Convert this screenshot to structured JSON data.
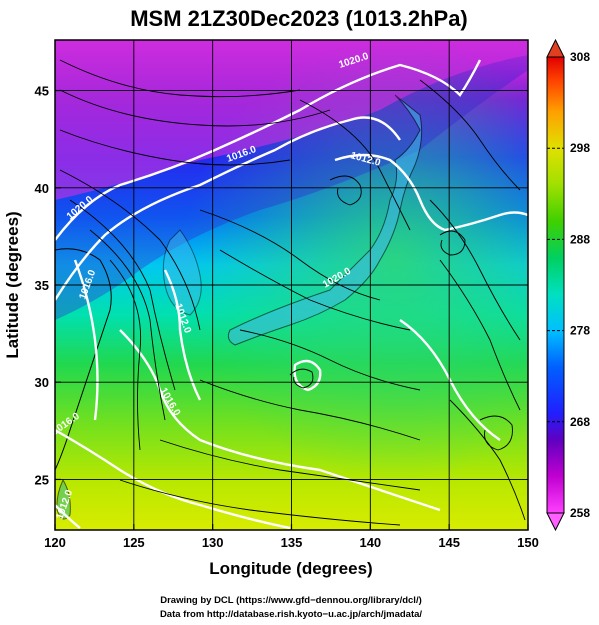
{
  "chart_data": {
    "type": "heatmap",
    "title": "MSM 21Z30Dec2023 (1013.2hPa)",
    "xlabel": "Longitude (degrees)",
    "ylabel": "Latitude  (degrees)",
    "xlim": [
      120,
      150
    ],
    "ylim": [
      22.4,
      47.6
    ],
    "x_ticks": [
      120,
      125,
      130,
      135,
      140,
      145,
      150
    ],
    "y_ticks": [
      25,
      30,
      35,
      40,
      45
    ],
    "colorbar": {
      "min": 258,
      "max": 308,
      "ticks": [
        258,
        268,
        278,
        288,
        298,
        308
      ],
      "colors": [
        "#ff40ff",
        "#8000c0",
        "#2020ff",
        "#0060ff",
        "#00c0ff",
        "#00e0c0",
        "#00d060",
        "#40d000",
        "#a0e000",
        "#e0e000",
        "#ffa000",
        "#ff4000",
        "#e00000"
      ]
    },
    "contours": {
      "color": "#ffffff",
      "labels": [
        "1020.0",
        "1016.0",
        "1012.0",
        "1020.0",
        "1016.0",
        "1012.0",
        "1020.0",
        "1016.0",
        "1016.0",
        "1012.0"
      ]
    },
    "overlays": [
      "streamlines (black)",
      "coastlines (black)",
      "grid (black)"
    ],
    "grid": true
  },
  "credits": {
    "line1": "Drawing by DCL (https://www.gfd−dennou.org/library/dcl/)",
    "line2": "Data from http://database.rish.kyoto−u.ac.jp/arch/jmadata/"
  }
}
